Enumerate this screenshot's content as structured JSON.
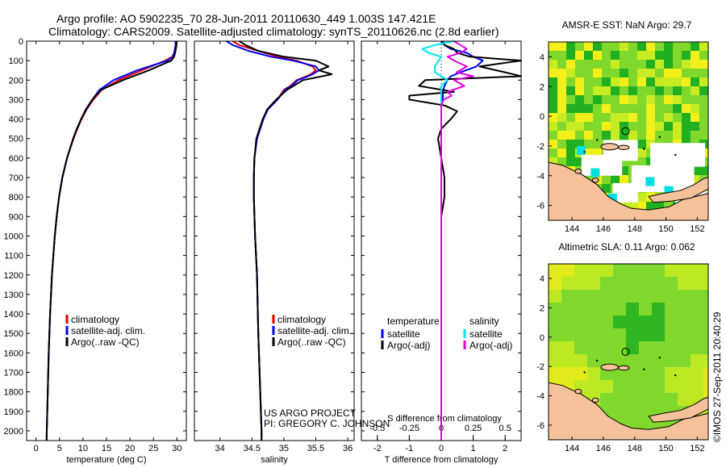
{
  "header": {
    "line1": "Argo profile: AO 5902235_70 28-Jun-2011 20110630_449 1.003S 147.421E",
    "line2": "Climatology: CARS2009. Satellite-adjusted climatology: synTS_20110626.nc (2.8d earlier)"
  },
  "watermark": "©IMOS 27-Sep-2011 20:40:29",
  "colors": {
    "climatology": "#e00000",
    "satellite": "#0000ff",
    "argo": "#000000",
    "sat_salinity": "#00e5ee",
    "argo_salinity": "#e000e0",
    "land": "#f4c19a",
    "green_dark": "#21b021",
    "green": "#7fd82b",
    "green_light": "#c8ec22",
    "yellow": "#f2ef1a",
    "cyan": "#00e0e0"
  },
  "chart_data": [
    {
      "type": "line",
      "panel": "temperature",
      "xlabel": "temperature (deg C)",
      "xlim": [
        -2,
        32
      ],
      "xticks": [
        0,
        5,
        10,
        15,
        20,
        25,
        30
      ],
      "ylim": [
        2050,
        0
      ],
      "yticks": [
        0,
        100,
        200,
        300,
        400,
        500,
        600,
        700,
        800,
        900,
        1000,
        1100,
        1200,
        1300,
        1400,
        1500,
        1600,
        1700,
        1800,
        1900,
        2000
      ],
      "depth": [
        0,
        20,
        50,
        80,
        100,
        150,
        200,
        250,
        300,
        350,
        400,
        450,
        500,
        600,
        700,
        800,
        900,
        1000,
        1200,
        1400,
        1600,
        1800,
        2000,
        2050
      ],
      "series": [
        {
          "name": "climatology",
          "color_key": "climatology",
          "values": [
            29.8,
            29.8,
            29.6,
            29.0,
            27.5,
            22.5,
            17.5,
            14.0,
            12.2,
            10.8,
            9.7,
            8.8,
            8.0,
            6.6,
            5.6,
            4.9,
            4.4,
            4.0,
            3.4,
            3.0,
            2.7,
            2.5,
            2.3,
            2.25
          ]
        },
        {
          "name": "satellite-adj. clim.",
          "color_key": "satellite",
          "values": [
            29.7,
            29.7,
            29.5,
            29.2,
            28.0,
            21.5,
            16.5,
            13.5,
            12.0,
            10.7,
            9.6,
            8.7,
            7.9,
            6.6,
            5.6,
            4.9,
            4.4,
            4.0,
            3.4,
            3.0,
            2.7,
            2.5,
            2.3,
            2.25
          ]
        },
        {
          "name": "Argo(..raw -QC)",
          "color_key": "argo",
          "values": [
            29.9,
            29.9,
            29.7,
            29.4,
            28.8,
            24.0,
            18.5,
            13.8,
            12.0,
            10.6,
            9.6,
            8.7,
            7.9,
            6.6,
            5.6,
            4.9,
            4.4,
            4.0,
            3.4,
            3.0,
            2.7,
            2.5,
            2.3,
            2.25
          ]
        }
      ],
      "legend": [
        "climatology",
        "satellite-adj. clim.",
        "Argo(..raw -QC)"
      ]
    },
    {
      "type": "line",
      "panel": "salinity",
      "xlabel": "salinity",
      "xlim": [
        33.6,
        36.1
      ],
      "xticks": [
        34,
        34.5,
        35,
        35.5,
        36
      ],
      "xtick_labels": [
        "34",
        "34.5",
        "35",
        "35.5",
        "36"
      ],
      "ylim": [
        2050,
        0
      ],
      "depth": [
        0,
        20,
        50,
        80,
        100,
        130,
        150,
        170,
        180,
        200,
        230,
        250,
        300,
        350,
        400,
        500,
        600,
        700,
        800,
        1000,
        1200,
        1500,
        2000,
        2050
      ],
      "series": [
        {
          "name": "climatology",
          "color_key": "climatology",
          "values": [
            34.2,
            34.3,
            34.6,
            34.9,
            35.2,
            35.45,
            35.5,
            35.42,
            35.35,
            35.2,
            35.1,
            35.0,
            34.9,
            34.75,
            34.68,
            34.58,
            34.54,
            34.53,
            34.53,
            34.55,
            34.58,
            34.6,
            34.65,
            34.65
          ]
        },
        {
          "name": "satellite-adj. clim.",
          "color_key": "satellite",
          "values": [
            34.1,
            34.2,
            34.45,
            34.8,
            35.15,
            35.5,
            35.55,
            35.45,
            35.38,
            35.22,
            35.12,
            35.02,
            34.9,
            34.75,
            34.68,
            34.58,
            34.54,
            34.53,
            34.53,
            34.55,
            34.58,
            34.6,
            34.65,
            34.65
          ]
        },
        {
          "name": "Argo(..raw -QC)",
          "color_key": "argo",
          "values": [
            34.3,
            34.4,
            34.6,
            35.0,
            35.5,
            35.7,
            35.55,
            35.75,
            35.6,
            35.3,
            35.15,
            35.05,
            34.88,
            34.74,
            34.67,
            34.57,
            34.54,
            34.53,
            34.53,
            34.55,
            34.58,
            34.6,
            34.65,
            34.65
          ]
        }
      ],
      "legend": [
        "climatology",
        "satellite-adj. clim.",
        "Argo(..raw -QC)"
      ],
      "annotation_lines": [
        "US ARGO PROJECT",
        "PI: GREGORY C. JOHNSON"
      ]
    },
    {
      "type": "line",
      "panel": "difference",
      "xlabel_bottom": "T difference from climatology",
      "xlabel_top": "S difference from climatology",
      "xlim_T": [
        -2.5,
        2.5
      ],
      "xticks_T": [
        -2,
        -1,
        0,
        1,
        2
      ],
      "xlim_S": [
        -0.625,
        0.625
      ],
      "xticks_S": [
        -0.5,
        -0.25,
        0,
        0.25,
        0.5
      ],
      "xtick_labels_S": [
        "-0.5",
        "-0.25",
        "0",
        "0.25",
        "0.5"
      ],
      "ylim": [
        2050,
        0
      ],
      "depth": [
        0,
        20,
        40,
        60,
        80,
        100,
        130,
        160,
        180,
        200,
        230,
        260,
        280,
        300,
        330,
        360,
        400,
        450,
        500,
        600,
        700,
        800,
        900,
        1000,
        1200,
        1400,
        1600,
        1800,
        2000,
        2050
      ],
      "series": [
        {
          "name": "temperature satellite",
          "color_key": "satellite",
          "units": "T",
          "values": [
            0.0,
            0.1,
            0.3,
            0.8,
            1.0,
            1.3,
            1.1,
            0.6,
            0.3,
            0.2,
            0.1,
            0.05,
            0.05,
            0.05,
            0.0,
            0.0,
            0.0,
            0.0,
            0.0,
            0.0,
            0.0,
            0.0,
            0.0,
            0.0,
            0.0,
            0.0,
            0.0,
            0.0,
            0.0,
            0.0
          ]
        },
        {
          "name": "temperature Argo(-adj)",
          "color_key": "argo",
          "units": "T",
          "values": [
            0.05,
            0.1,
            0.4,
            0.5,
            0.9,
            2.5,
            1.2,
            2.0,
            2.5,
            -0.5,
            -0.7,
            0.4,
            -1.0,
            -1.0,
            0.1,
            0.5,
            0.3,
            0.0,
            -0.1,
            0.0,
            0.1,
            0.1,
            0.0,
            0.0,
            0.0,
            0.0,
            0.0,
            0.0,
            0.0,
            0.0
          ]
        },
        {
          "name": "salinity satellite",
          "color_key": "sat_salinity",
          "units": "S",
          "values": [
            0.1,
            -0.05,
            -0.15,
            -0.1,
            0.0,
            -0.02,
            -0.05,
            -0.05,
            0.0,
            0.05,
            0.0,
            0.0,
            0.0,
            0.0,
            0.0,
            0.0,
            0.0,
            0.0,
            0.0,
            0.0,
            0.0,
            0.0,
            0.0,
            0.0,
            0.0,
            0.0,
            0.0,
            0.0,
            0.0,
            0.0
          ]
        },
        {
          "name": "salinity Argo(-adj)",
          "color_key": "argo_salinity",
          "units": "S",
          "values": [
            0.1,
            0.15,
            0.2,
            0.15,
            0.05,
            0.1,
            0.2,
            0.12,
            0.25,
            0.1,
            0.18,
            0.05,
            0.08,
            0.02,
            0.0,
            0.0,
            0.0,
            0.0,
            0.0,
            0.0,
            0.0,
            0.0,
            0.0,
            0.0,
            0.0,
            0.0,
            0.0,
            0.0,
            0.0,
            0.0
          ]
        }
      ],
      "legend_titles": [
        "temperature",
        "salinity"
      ],
      "legend_items": [
        {
          "label": "satellite",
          "color_key": "satellite"
        },
        {
          "label": "Argo(-adj)",
          "color_key": "argo"
        },
        {
          "label": "satellite",
          "color_key": "sat_salinity"
        },
        {
          "label": "Argo(-adj)",
          "color_key": "argo_salinity"
        }
      ]
    },
    {
      "type": "heatmap",
      "panel": "sst_map",
      "title": "AMSR-E SST: NaN Argo: 29.7",
      "xlim": [
        142.5,
        152.7
      ],
      "ylim": [
        -7,
        5
      ],
      "xticks": [
        144,
        146,
        148,
        150,
        152
      ],
      "yticks": [
        -6,
        -4,
        -2,
        0,
        2,
        4
      ],
      "argo_position": [
        147.421,
        -1.003
      ]
    },
    {
      "type": "heatmap",
      "panel": "sla_map",
      "title": "Altimetric SLA: 0.11 Argo: 0.062",
      "xlim": [
        142.5,
        152.7
      ],
      "ylim": [
        -7,
        5
      ],
      "xticks": [
        144,
        146,
        148,
        150,
        152
      ],
      "yticks": [
        -6,
        -4,
        -2,
        0,
        2,
        4
      ],
      "argo_position": [
        147.421,
        -1.003
      ]
    }
  ]
}
